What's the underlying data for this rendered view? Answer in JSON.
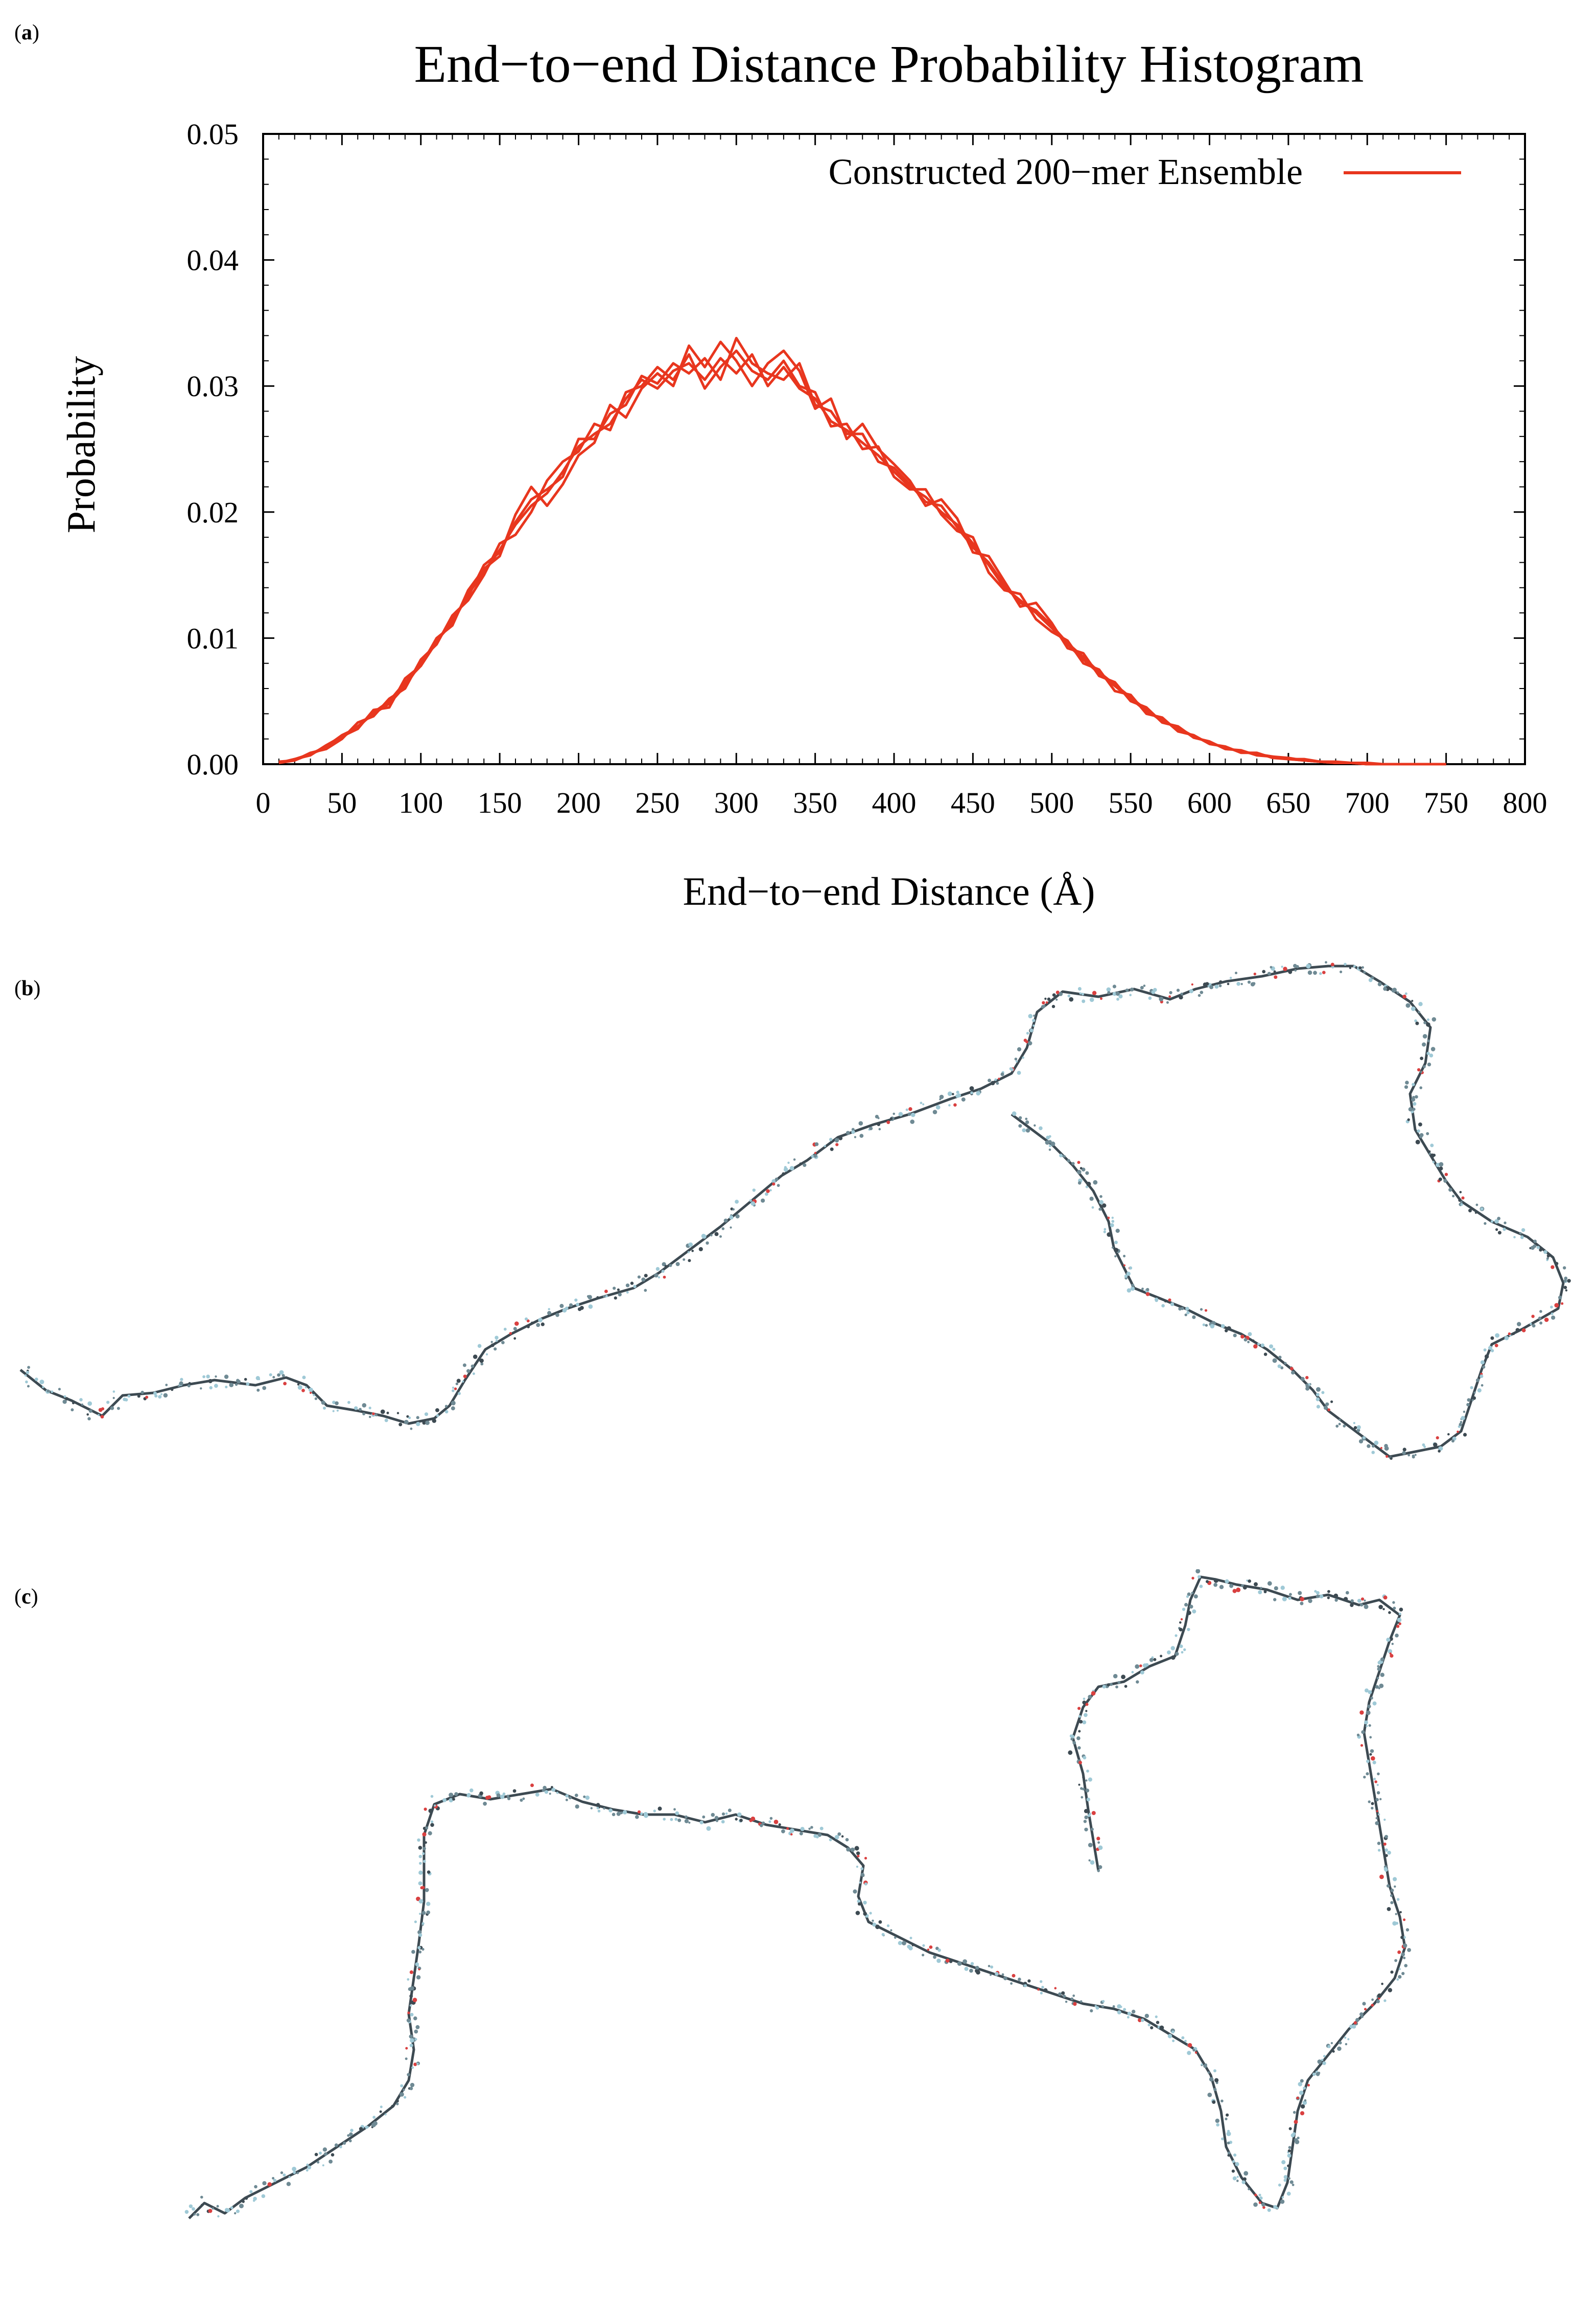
{
  "panels": {
    "a": "a",
    "b": "b",
    "c": "c"
  },
  "colors": {
    "series": "#e8361e",
    "axis": "#000000",
    "molecule_carbon": "#6f8a94",
    "molecule_oxygen": "#d94040",
    "molecule_hydrogen": "#9fc9d6",
    "molecule_backbone": "#3d4a52"
  },
  "chart_data": {
    "type": "line",
    "title": "End−to−end Distance Probability Histogram",
    "xlabel": "End−to−end Distance (Å)",
    "ylabel": "Probability",
    "xlim": [
      0,
      800
    ],
    "ylim": [
      0,
      0.05
    ],
    "xticks": [
      "0",
      "50",
      "100",
      "150",
      "200",
      "250",
      "300",
      "350",
      "400",
      "450",
      "500",
      "550",
      "600",
      "650",
      "700",
      "750",
      "800"
    ],
    "yticks": [
      "0.00",
      "0.01",
      "0.02",
      "0.03",
      "0.04",
      "0.05"
    ],
    "grid": false,
    "legend_position": "top-right",
    "legend_label": "Constructed 200−mer Ensemble",
    "x": [
      10,
      20,
      30,
      40,
      50,
      60,
      70,
      80,
      90,
      100,
      110,
      120,
      130,
      140,
      150,
      160,
      170,
      180,
      190,
      200,
      210,
      220,
      230,
      240,
      250,
      260,
      270,
      280,
      290,
      300,
      310,
      320,
      330,
      340,
      350,
      360,
      370,
      380,
      390,
      400,
      410,
      420,
      430,
      440,
      450,
      460,
      470,
      480,
      490,
      500,
      510,
      520,
      530,
      540,
      550,
      560,
      570,
      580,
      590,
      600,
      610,
      620,
      630,
      640,
      650,
      660,
      670,
      680,
      690,
      700,
      710,
      720,
      730,
      740,
      750
    ],
    "series": [
      {
        "values": [
          0.0001,
          0.0003,
          0.0008,
          0.0013,
          0.0021,
          0.003,
          0.004,
          0.0048,
          0.0062,
          0.008,
          0.0098,
          0.0112,
          0.0135,
          0.0152,
          0.017,
          0.019,
          0.0205,
          0.0215,
          0.0232,
          0.0252,
          0.0262,
          0.027,
          0.029,
          0.0305,
          0.0298,
          0.0312,
          0.0318,
          0.0305,
          0.0322,
          0.031,
          0.0325,
          0.03,
          0.0315,
          0.0298,
          0.029,
          0.0272,
          0.0265,
          0.0255,
          0.0245,
          0.0232,
          0.022,
          0.0212,
          0.02,
          0.019,
          0.0175,
          0.0158,
          0.014,
          0.013,
          0.012,
          0.0108,
          0.0095,
          0.0083,
          0.0072,
          0.0062,
          0.0052,
          0.0042,
          0.0035,
          0.0028,
          0.0022,
          0.0017,
          0.0013,
          0.001,
          0.0008,
          0.0006,
          0.0004,
          0.0003,
          0.0002,
          0.0001,
          0.0001,
          0.0,
          0.0,
          0.0,
          0.0,
          0.0,
          0.0
        ]
      },
      {
        "values": [
          0.0001,
          0.0004,
          0.0007,
          0.0015,
          0.0022,
          0.0028,
          0.0043,
          0.0045,
          0.0068,
          0.0078,
          0.01,
          0.011,
          0.0138,
          0.0155,
          0.0165,
          0.0198,
          0.022,
          0.0205,
          0.0222,
          0.0245,
          0.0255,
          0.0285,
          0.0275,
          0.0298,
          0.031,
          0.03,
          0.0332,
          0.0315,
          0.0335,
          0.032,
          0.03,
          0.0318,
          0.0328,
          0.0312,
          0.0282,
          0.029,
          0.0258,
          0.027,
          0.025,
          0.0238,
          0.0225,
          0.0205,
          0.021,
          0.0195,
          0.0168,
          0.0165,
          0.0145,
          0.0125,
          0.0128,
          0.0112,
          0.0092,
          0.0088,
          0.007,
          0.0065,
          0.005,
          0.0045,
          0.0033,
          0.003,
          0.0021,
          0.0018,
          0.0012,
          0.0011,
          0.0007,
          0.0006,
          0.0005,
          0.0003,
          0.0002,
          0.0001,
          0.0001,
          0.0001,
          0.0,
          0.0,
          0.0,
          0.0,
          0.0
        ]
      },
      {
        "values": [
          0.0002,
          0.0003,
          0.0009,
          0.0012,
          0.002,
          0.0033,
          0.0038,
          0.0052,
          0.006,
          0.0083,
          0.0095,
          0.0118,
          0.013,
          0.015,
          0.0175,
          0.0182,
          0.02,
          0.0225,
          0.024,
          0.0248,
          0.027,
          0.0265,
          0.0295,
          0.03,
          0.0315,
          0.0305,
          0.0325,
          0.0298,
          0.0315,
          0.0328,
          0.0312,
          0.0305,
          0.032,
          0.03,
          0.0295,
          0.0268,
          0.027,
          0.025,
          0.0252,
          0.0228,
          0.0218,
          0.0218,
          0.0198,
          0.0185,
          0.018,
          0.0152,
          0.0138,
          0.0135,
          0.0115,
          0.0105,
          0.0098,
          0.008,
          0.0075,
          0.0058,
          0.0055,
          0.004,
          0.0037,
          0.0026,
          0.0023,
          0.0016,
          0.0014,
          0.0009,
          0.0009,
          0.0005,
          0.0004,
          0.0004,
          0.0002,
          0.0002,
          0.0001,
          0.0,
          0.0,
          0.0,
          0.0,
          0.0,
          0.0
        ]
      },
      {
        "values": [
          0.0001,
          0.0004,
          0.0008,
          0.0014,
          0.0023,
          0.0029,
          0.0041,
          0.005,
          0.0065,
          0.0078,
          0.0097,
          0.0115,
          0.0133,
          0.0158,
          0.0168,
          0.0192,
          0.021,
          0.0218,
          0.0228,
          0.0258,
          0.0258,
          0.0278,
          0.0285,
          0.0308,
          0.0302,
          0.0318,
          0.031,
          0.0322,
          0.0305,
          0.0338,
          0.0318,
          0.031,
          0.0305,
          0.0318,
          0.0285,
          0.028,
          0.0262,
          0.0262,
          0.024,
          0.0235,
          0.0222,
          0.0208,
          0.0205,
          0.0188,
          0.0172,
          0.016,
          0.0142,
          0.0128,
          0.0122,
          0.011,
          0.0096,
          0.0085,
          0.0073,
          0.0063,
          0.0053,
          0.0043,
          0.0034,
          0.0029,
          0.0022,
          0.0017,
          0.0013,
          0.001,
          0.0008,
          0.0006,
          0.0004,
          0.0003,
          0.0002,
          0.0001,
          0.0001,
          0.0,
          0.0,
          0.0,
          0.0,
          0.0,
          0.0
        ]
      }
    ]
  }
}
